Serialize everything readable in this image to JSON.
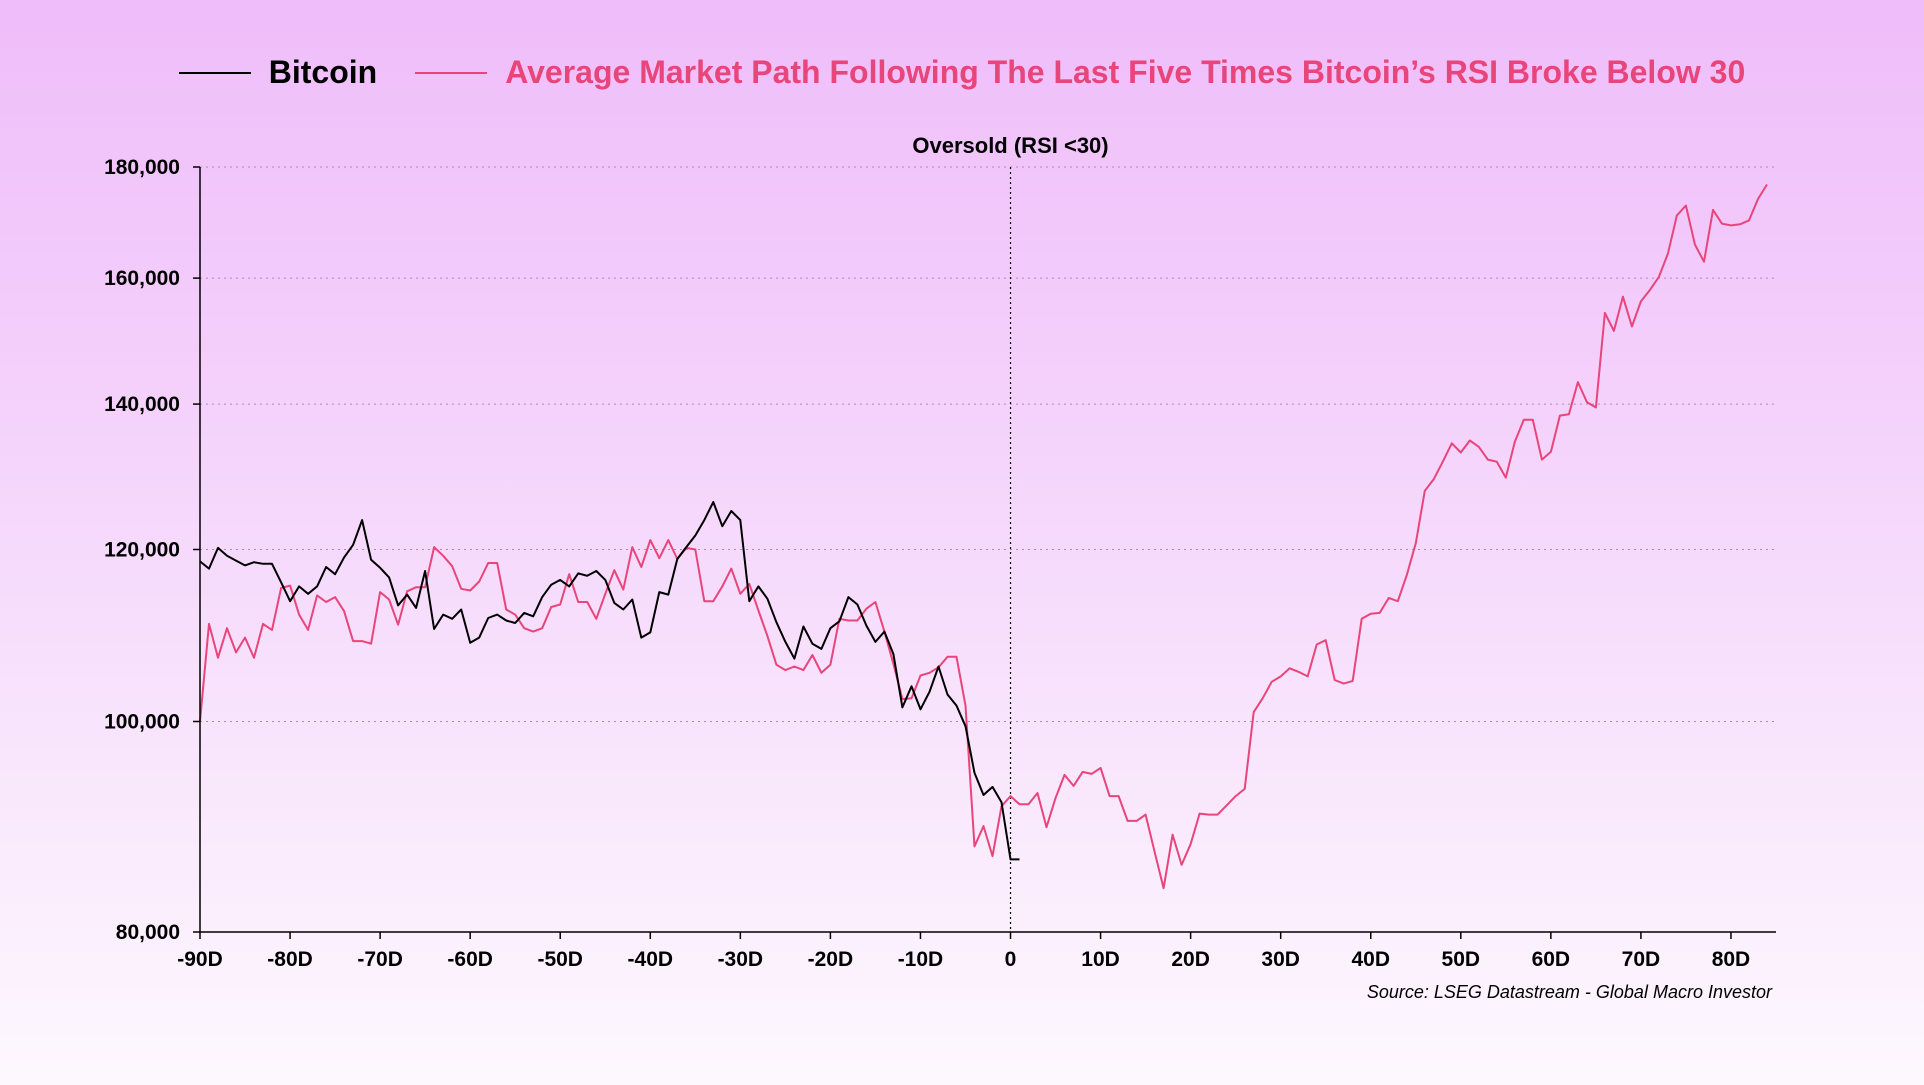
{
  "chart_data": {
    "type": "line",
    "legend_position": "top-center",
    "grid": true,
    "y_scale": "log",
    "ylim": [
      80000,
      180000
    ],
    "xlim": [
      -90,
      85
    ],
    "y_ticks": [
      80000,
      100000,
      120000,
      140000,
      160000,
      180000
    ],
    "y_tick_labels": [
      "80,000",
      "100,000",
      "120,000",
      "140,000",
      "160,000",
      "180,000"
    ],
    "x_ticks": [
      -90,
      -80,
      -70,
      -60,
      -50,
      -40,
      -30,
      -20,
      -10,
      0,
      10,
      20,
      30,
      40,
      50,
      60,
      70,
      80
    ],
    "x_tick_labels": [
      "-90D",
      "-80D",
      "-70D",
      "-60D",
      "-50D",
      "-40D",
      "-30D",
      "-20D",
      "-10D",
      "0",
      "10D",
      "20D",
      "30D",
      "40D",
      "50D",
      "60D",
      "70D",
      "80D"
    ],
    "annotation": {
      "text": "Oversold (RSI <30)",
      "x": 0
    },
    "source": "Source: LSEG Datastream - Global Macro Investor",
    "series": [
      {
        "name": "Bitcoin",
        "color": "#000000",
        "x_start": -90,
        "x_step": 1,
        "values": [
          118500,
          117600,
          120200,
          119200,
          118600,
          118000,
          118400,
          118200,
          118200,
          115900,
          113600,
          115400,
          114500,
          115400,
          117800,
          116900,
          119000,
          120600,
          123800,
          118700,
          117700,
          116500,
          113100,
          114400,
          112800,
          117300,
          110300,
          112000,
          111500,
          112600,
          108700,
          109300,
          111600,
          112000,
          111300,
          111000,
          112200,
          111800,
          114100,
          115600,
          116200,
          115400,
          117000,
          116700,
          117300,
          116200,
          113400,
          112600,
          113800,
          109300,
          109900,
          114700,
          114400,
          118800,
          120300,
          121800,
          123800,
          126200,
          123000,
          125000,
          123800,
          113600,
          115400,
          113900,
          111100,
          108800,
          106900,
          110600,
          108600,
          108000,
          110400,
          111200,
          114100,
          113200,
          110700,
          108800,
          110000,
          107400,
          101500,
          103800,
          101300,
          103200,
          106000,
          102900,
          101700,
          99500,
          94700,
          92500,
          93300,
          91800,
          86400,
          86400
        ]
      },
      {
        "name": "Average Market Path Following The Last Five Times Bitcoin’s RSI Broke Below 30",
        "color": "#e8457a",
        "x_start": -90,
        "x_step": 1,
        "values": [
          100000,
          110900,
          107000,
          110400,
          107600,
          109300,
          107000,
          110900,
          110200,
          115200,
          115500,
          112000,
          110200,
          114300,
          113500,
          114100,
          112400,
          108900,
          108900,
          108600,
          114700,
          113800,
          110800,
          114800,
          115300,
          115300,
          120300,
          119200,
          117900,
          115100,
          114900,
          116000,
          118300,
          118300,
          112600,
          112000,
          110400,
          110000,
          110400,
          112900,
          113200,
          116900,
          113500,
          113500,
          111500,
          114500,
          117400,
          115000,
          120300,
          117800,
          121200,
          118900,
          121200,
          118800,
          120200,
          120000,
          113600,
          113600,
          115400,
          117600,
          114500,
          115700,
          112500,
          109500,
          106200,
          105600,
          106000,
          105600,
          107300,
          105300,
          106200,
          111500,
          111300,
          111300,
          112700,
          113500,
          110000,
          106300,
          102400,
          102500,
          105000,
          105300,
          105900,
          107100,
          107100,
          101700,
          87600,
          89500,
          86700,
          91400,
          92400,
          91600,
          91600,
          92700,
          89400,
          92200,
          94500,
          93400,
          94800,
          94600,
          95200,
          92400,
          92400,
          90000,
          90000,
          90600,
          87100,
          83800,
          88700,
          85900,
          87800,
          90700,
          90600,
          90600,
          91500,
          92400,
          93100,
          101000,
          102500,
          104300,
          104900,
          105800,
          105400,
          104900,
          108500,
          109000,
          104500,
          104100,
          104400,
          111500,
          112100,
          112200,
          114000,
          113600,
          116800,
          120800,
          127700,
          129300,
          131700,
          134300,
          133000,
          134700,
          133800,
          132000,
          131700,
          129500,
          134500,
          137700,
          137700,
          132000,
          133100,
          138300,
          138500,
          143300,
          140300,
          139500,
          154200,
          151300,
          156900,
          152000,
          156100,
          158000,
          160200,
          164200,
          171000,
          172800,
          165800,
          162800,
          172000,
          169500,
          169200,
          169400,
          170100,
          174000,
          176700
        ]
      }
    ]
  }
}
